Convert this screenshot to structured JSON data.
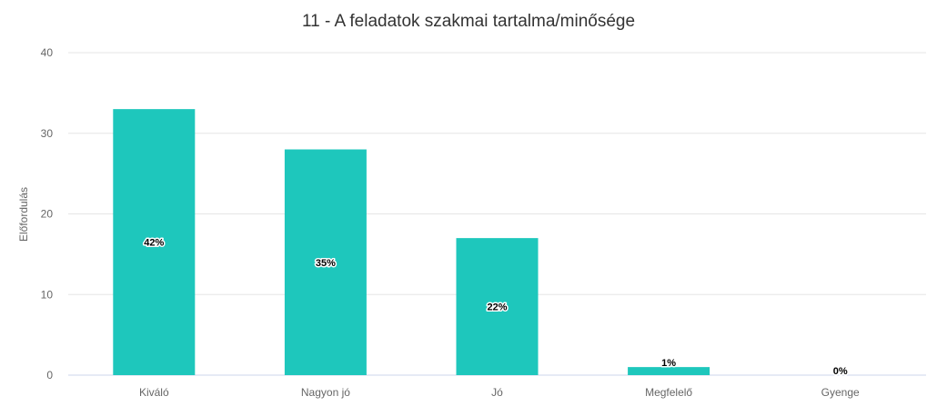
{
  "chart_data": {
    "type": "bar",
    "title": "11 - A feladatok szakmai tartalma/minősége",
    "xlabel": "",
    "ylabel": "Előfordulás",
    "categories": [
      "Kiváló",
      "Nagyon jó",
      "Jó",
      "Megfelelő",
      "Gyenge"
    ],
    "values": [
      33,
      28,
      17,
      1,
      0
    ],
    "data_labels": [
      "42%",
      "35%",
      "22%",
      "1%",
      "0%"
    ],
    "ylim": [
      0,
      40
    ],
    "yticks": [
      "0",
      "10",
      "20",
      "30",
      "40"
    ],
    "grid": true,
    "legend": "none",
    "colors": {
      "bar": "#1ec7bc"
    }
  }
}
